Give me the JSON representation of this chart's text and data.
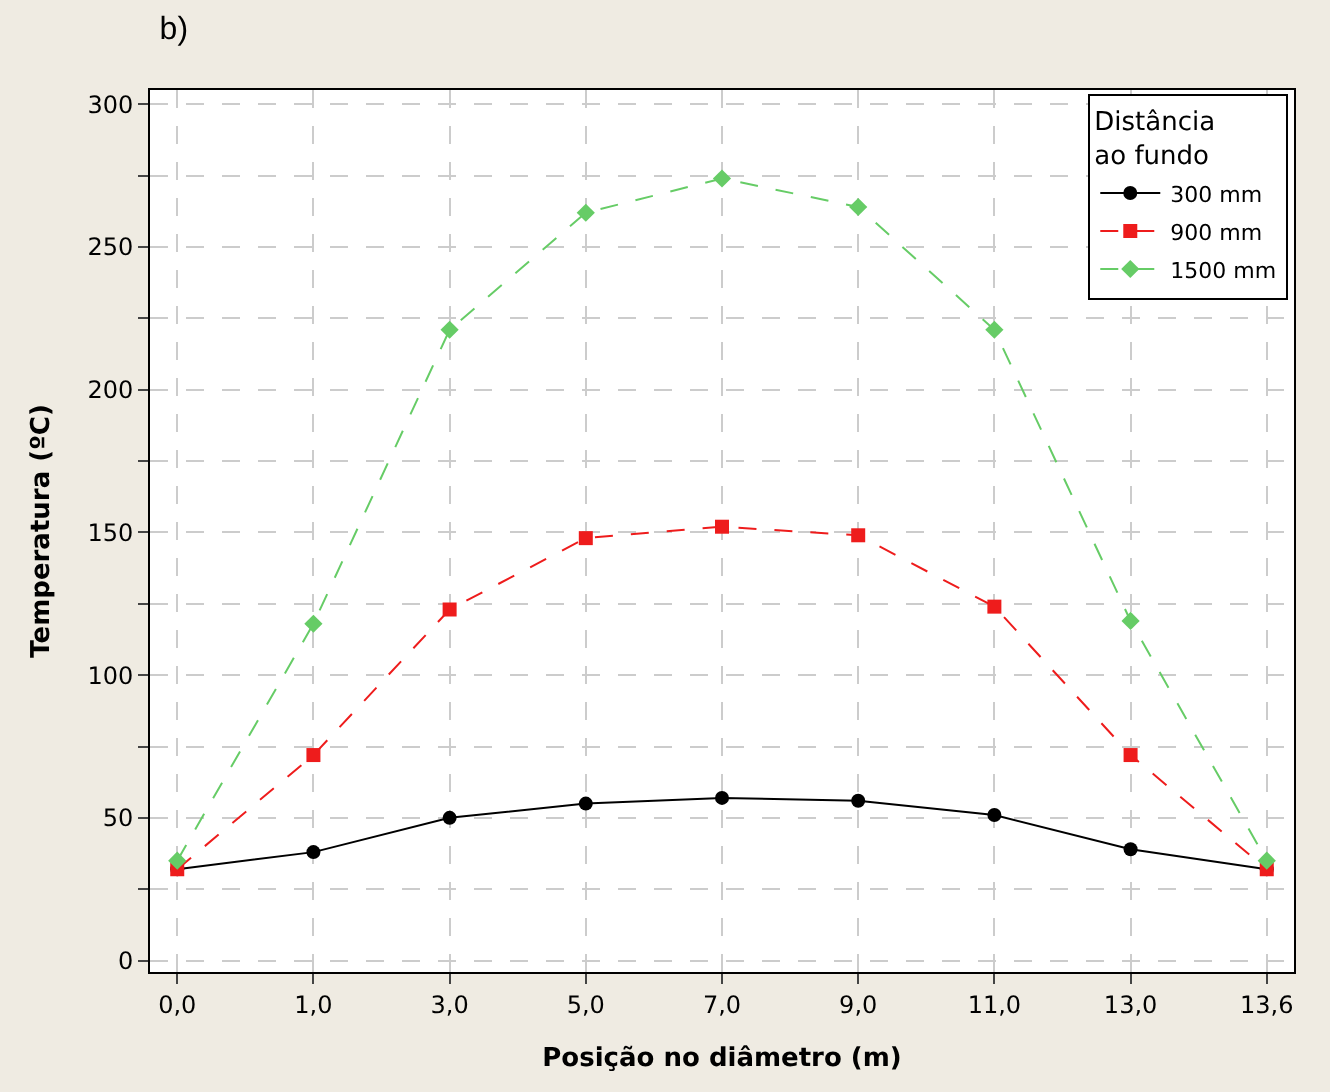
{
  "chart_data": {
    "type": "line",
    "title": "b)",
    "xlabel": "Posição no diâmetro (m)",
    "ylabel": "Temperatura (ºC)",
    "legend_title": "Distância\nao fundo",
    "categories": [
      "0,0",
      "1,0",
      "3,0",
      "5,0",
      "7,0",
      "9,0",
      "11,0",
      "13,0",
      "13,6"
    ],
    "series": [
      {
        "name": "300 mm",
        "color": "#000000",
        "marker": "circle",
        "line_style": "solid",
        "values": [
          32,
          38,
          50,
          55,
          57,
          56,
          51,
          39,
          32
        ]
      },
      {
        "name": "900 mm",
        "color": "#ee1c1c",
        "marker": "square",
        "line_style": "dashed",
        "values": [
          32,
          72,
          123,
          148,
          152,
          149,
          124,
          72,
          32
        ]
      },
      {
        "name": "1500 mm",
        "color": "#66cc66",
        "marker": "diamond",
        "line_style": "dashed",
        "values": [
          35,
          118,
          221,
          262,
          274,
          264,
          221,
          119,
          35
        ]
      }
    ],
    "ylim": [
      -4,
      305
    ],
    "yticks": [
      0,
      {
        "value": 25,
        "label": null
      },
      50,
      {
        "value": 75,
        "label": null
      },
      100,
      {
        "value": 125,
        "label": null
      },
      150,
      {
        "value": 175,
        "label": null
      },
      200,
      {
        "value": 225,
        "label": null
      },
      250,
      {
        "value": 275,
        "label": null
      },
      300
    ],
    "grid": true,
    "legend": "top right"
  }
}
